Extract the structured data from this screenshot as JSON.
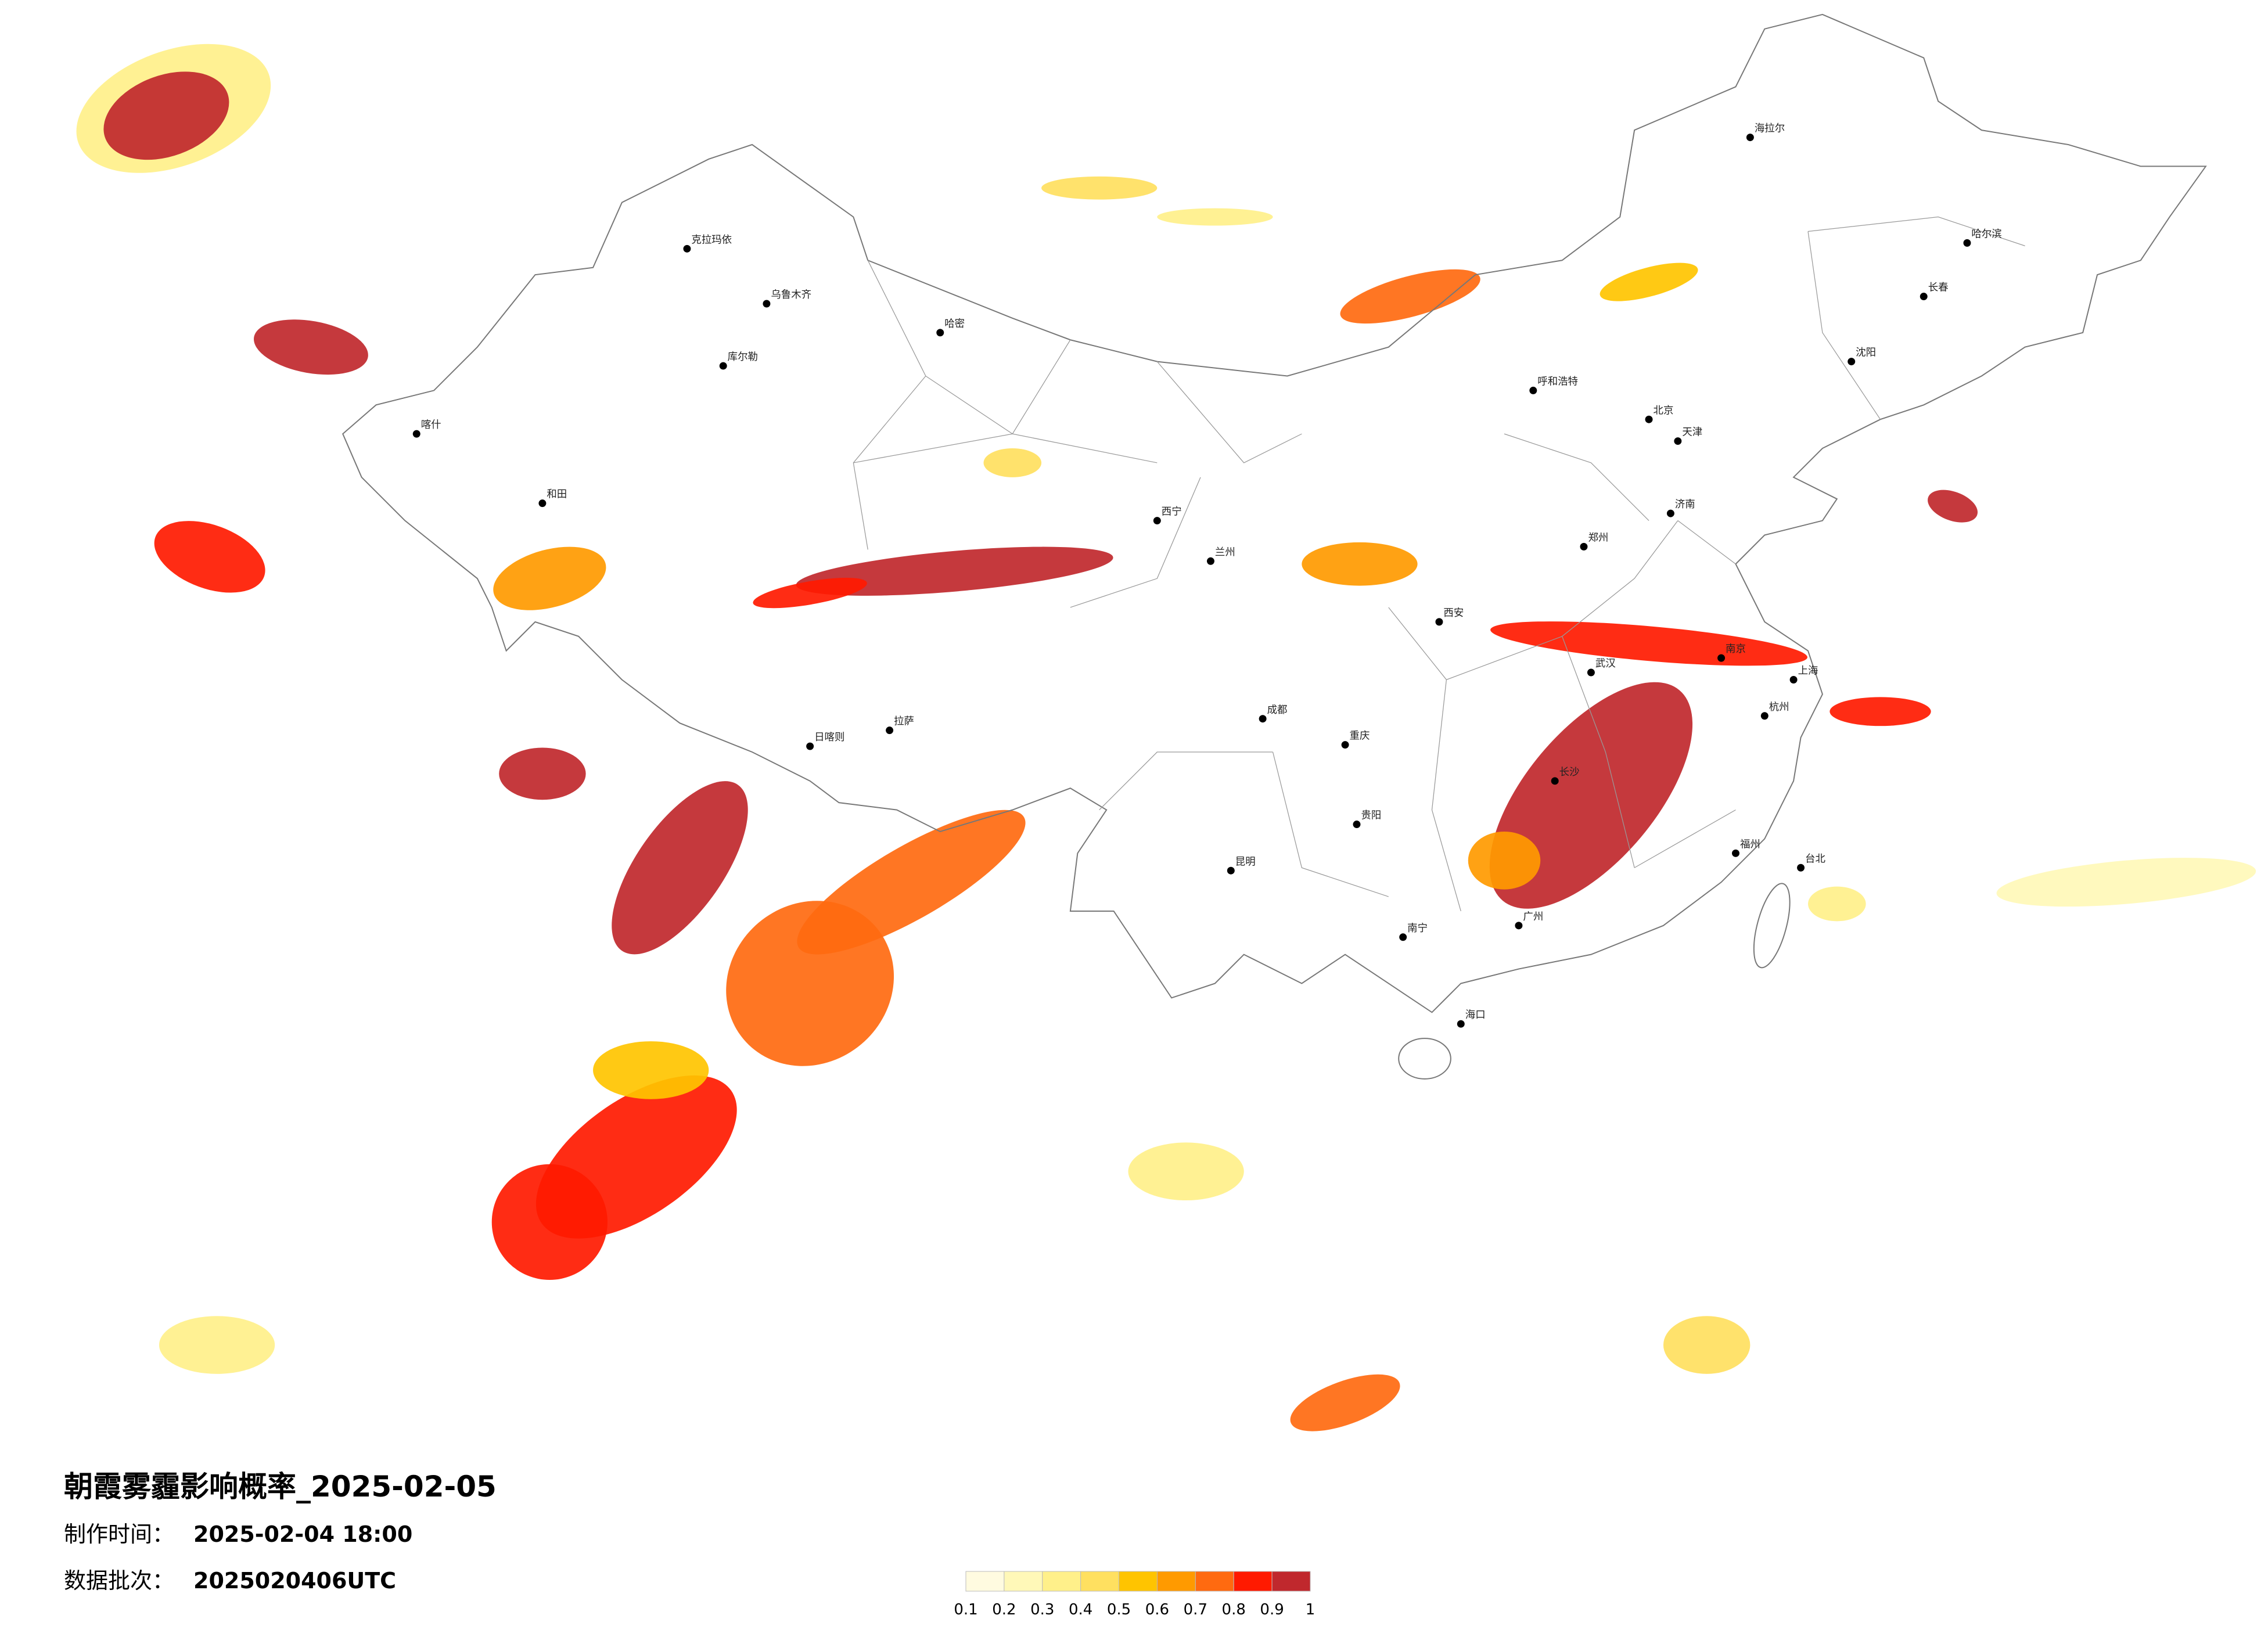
{
  "title": "朝霞雾霾影响概率_2025-02-05",
  "meta": [
    {
      "label": "制作时间：",
      "value": "2025-02-04 18:00"
    },
    {
      "label": "数据批次：",
      "value": "2025020406UTC"
    }
  ],
  "legend": {
    "ticks": [
      0.1,
      0.2,
      0.3,
      0.4,
      0.5,
      0.6,
      0.7,
      0.8,
      0.9,
      1
    ],
    "colors": [
      "#fffbe0",
      "#fff8b8",
      "#fff08a",
      "#ffe060",
      "#ffc400",
      "#ff9a00",
      "#ff6a10",
      "#ff1a00",
      "#c0282d"
    ]
  },
  "cities": [
    {
      "name": "克拉玛依"
    },
    {
      "name": "乌鲁木齐"
    },
    {
      "name": "哈密"
    },
    {
      "name": "库尔勒"
    },
    {
      "name": "喀什"
    },
    {
      "name": "和田"
    },
    {
      "name": "日喀则"
    },
    {
      "name": "拉萨"
    },
    {
      "name": "西宁"
    },
    {
      "name": "兰州"
    },
    {
      "name": "成都"
    },
    {
      "name": "重庆"
    },
    {
      "name": "昆明"
    },
    {
      "name": "贵阳"
    },
    {
      "name": "南宁"
    },
    {
      "name": "广州"
    },
    {
      "name": "长沙"
    },
    {
      "name": "武汉"
    },
    {
      "name": "郑州"
    },
    {
      "name": "西安"
    },
    {
      "name": "北京"
    },
    {
      "name": "天津"
    },
    {
      "name": "济南"
    },
    {
      "name": "南京"
    },
    {
      "name": "上海"
    },
    {
      "name": "杭州"
    },
    {
      "name": "福州"
    },
    {
      "name": "沈阳"
    },
    {
      "name": "长春"
    },
    {
      "name": "哈尔滨"
    },
    {
      "name": "呼和浩特"
    },
    {
      "name": "海拉尔"
    },
    {
      "name": "海口"
    },
    {
      "name": "台北"
    }
  ]
}
